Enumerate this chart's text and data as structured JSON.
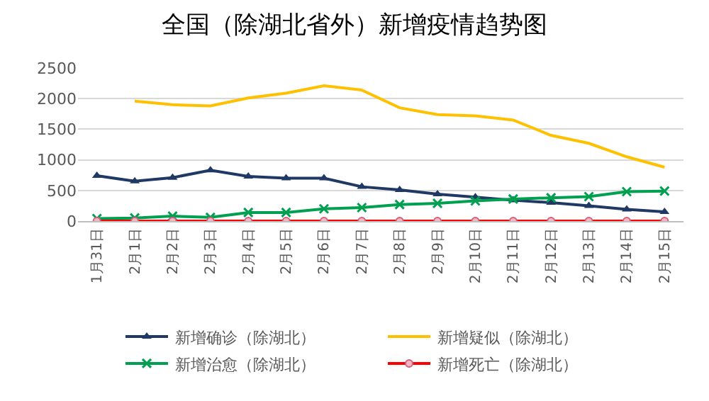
{
  "chart_data": {
    "type": "line",
    "title": "全国（除湖北省外）新增疫情趋势图",
    "categories": [
      "1月31日",
      "2月1日",
      "2月2日",
      "2月3日",
      "2月4日",
      "2月5日",
      "2月6日",
      "2月7日",
      "2月8日",
      "2月9日",
      "2月10日",
      "2月11日",
      "2月12日",
      "2月13日",
      "2月14日",
      "2月15日"
    ],
    "series": [
      {
        "name": "新增确诊（除湖北）",
        "color": "#203864",
        "marker": "triangle",
        "values": [
          740,
          650,
          710,
          830,
          730,
          700,
          700,
          560,
          510,
          440,
          390,
          340,
          300,
          250,
          190,
          150
        ]
      },
      {
        "name": "新增疑似（除湖北）",
        "color": "#ffc000",
        "marker": "none",
        "values": [
          null,
          1960,
          1900,
          1880,
          2010,
          2090,
          2210,
          2140,
          1850,
          1740,
          1720,
          1650,
          1400,
          1270,
          1050,
          880
        ]
      },
      {
        "name": "新增治愈（除湖北）",
        "color": "#00a050",
        "marker": "cross",
        "values": [
          40,
          50,
          80,
          60,
          140,
          140,
          200,
          220,
          270,
          290,
          330,
          360,
          380,
          400,
          480,
          490
        ]
      },
      {
        "name": "新增死亡（除湖北）",
        "color": "#ff0000",
        "marker": "circle",
        "values": [
          0,
          0,
          0,
          0,
          0,
          0,
          0,
          0,
          0,
          0,
          0,
          0,
          0,
          0,
          0,
          0
        ]
      }
    ],
    "ylim": [
      0,
      2500
    ],
    "yticks": [
      0,
      500,
      1000,
      1500,
      2000,
      2500
    ],
    "grid": "y",
    "legend": "bottom"
  }
}
